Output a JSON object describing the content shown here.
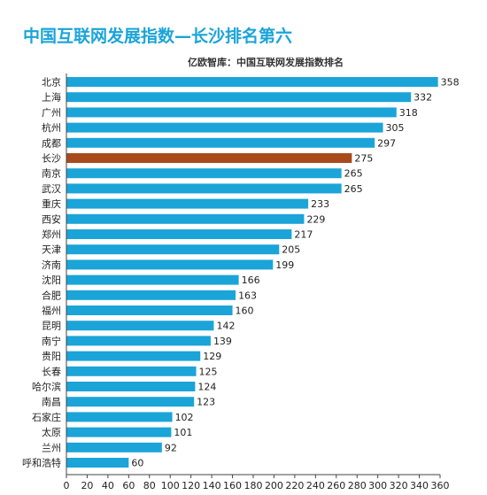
{
  "page": {
    "title": "中国互联网发展指数—长沙排名第六",
    "subtitle": "亿欧智库：中国互联网发展指数排名"
  },
  "colors": {
    "bar": "#1ba4d8",
    "highlight": "#a94a1c",
    "axis": "#444444"
  },
  "chart_data": {
    "type": "bar",
    "orientation": "horizontal",
    "title": "中国互联网发展指数—长沙排名第六",
    "subtitle": "亿欧智库：中国互联网发展指数排名",
    "categories": [
      "北京",
      "上海",
      "广州",
      "杭州",
      "成都",
      "长沙",
      "南京",
      "武汉",
      "重庆",
      "西安",
      "郑州",
      "天津",
      "济南",
      "沈阳",
      "合肥",
      "福州",
      "昆明",
      "南宁",
      "贵阳",
      "长春",
      "哈尔滨",
      "南昌",
      "石家庄",
      "太原",
      "兰州",
      "呼和浩特"
    ],
    "values": [
      358,
      332,
      318,
      305,
      297,
      275,
      265,
      265,
      233,
      229,
      217,
      205,
      199,
      166,
      163,
      160,
      142,
      139,
      129,
      125,
      124,
      123,
      102,
      101,
      92,
      60
    ],
    "highlight": "长沙",
    "xlim": [
      0,
      360
    ],
    "xticks": [
      0,
      20,
      40,
      60,
      80,
      100,
      120,
      140,
      160,
      180,
      200,
      220,
      240,
      260,
      280,
      300,
      320,
      340,
      360
    ],
    "grid": false,
    "legend": "none"
  }
}
